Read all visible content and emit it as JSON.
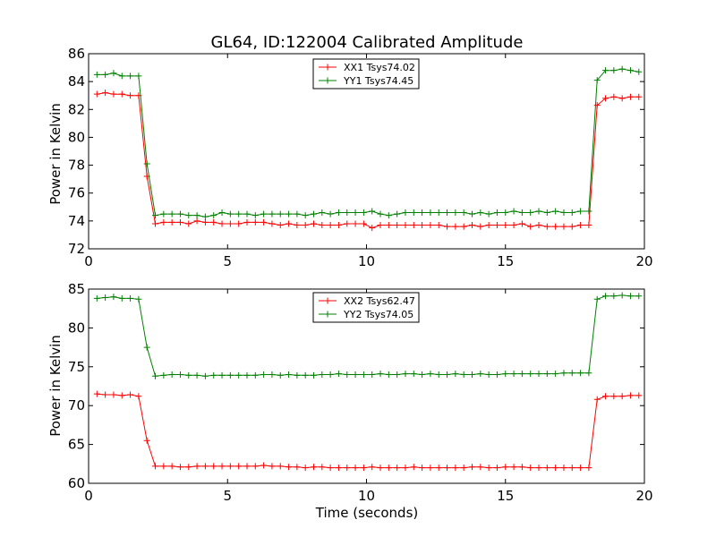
{
  "colors": {
    "xx": "#ff0000",
    "yy": "#008000",
    "axis": "#000000",
    "background": "#ffffff"
  },
  "chart_data": [
    {
      "type": "line",
      "title": "GL64, ID:122004 Calibrated Amplitude",
      "xlabel": "",
      "ylabel": "Power in Kelvin",
      "xlim": [
        0,
        20
      ],
      "ylim": [
        72,
        86
      ],
      "xticks": [
        "0",
        "5",
        "10",
        "15",
        "20"
      ],
      "yticks": [
        "72",
        "74",
        "76",
        "78",
        "80",
        "82",
        "84",
        "86"
      ],
      "xtick_values": [
        0,
        5,
        10,
        15,
        20
      ],
      "ytick_values": [
        72,
        74,
        76,
        78,
        80,
        82,
        84,
        86
      ],
      "grid": false,
      "legend_position": "top-center",
      "marker": "plus",
      "series": [
        {
          "name": "XX1 Tsys74.02",
          "color": "#ff0000",
          "x": [
            0.3,
            0.6,
            0.9,
            1.2,
            1.5,
            1.8,
            2.1,
            2.4,
            2.7,
            3.0,
            3.3,
            3.6,
            3.9,
            4.2,
            4.5,
            4.8,
            5.1,
            5.4,
            5.7,
            6.0,
            6.3,
            6.6,
            6.9,
            7.2,
            7.5,
            7.8,
            8.1,
            8.4,
            8.7,
            9.0,
            9.3,
            9.6,
            9.9,
            10.2,
            10.5,
            10.8,
            11.1,
            11.4,
            11.7,
            12.0,
            12.3,
            12.6,
            12.9,
            13.2,
            13.5,
            13.8,
            14.1,
            14.4,
            14.7,
            15.0,
            15.3,
            15.6,
            15.9,
            16.2,
            16.5,
            16.8,
            17.1,
            17.4,
            17.7,
            18.0,
            18.3,
            18.6,
            18.9,
            19.2,
            19.5,
            19.8
          ],
          "y": [
            83.1,
            83.2,
            83.1,
            83.1,
            83.0,
            83.0,
            77.2,
            73.8,
            73.9,
            73.9,
            73.9,
            73.8,
            74.0,
            73.9,
            73.9,
            73.8,
            73.8,
            73.8,
            73.9,
            73.9,
            73.9,
            73.8,
            73.7,
            73.8,
            73.7,
            73.7,
            73.8,
            73.7,
            73.7,
            73.7,
            73.8,
            73.8,
            73.8,
            73.5,
            73.7,
            73.7,
            73.7,
            73.7,
            73.7,
            73.7,
            73.7,
            73.7,
            73.6,
            73.6,
            73.6,
            73.7,
            73.6,
            73.7,
            73.7,
            73.7,
            73.7,
            73.8,
            73.6,
            73.7,
            73.6,
            73.6,
            73.6,
            73.6,
            73.7,
            73.7,
            82.3,
            82.8,
            82.9,
            82.8,
            82.9,
            82.9
          ]
        },
        {
          "name": "YY1 Tsys74.45",
          "color": "#008000",
          "x": [
            0.3,
            0.6,
            0.9,
            1.2,
            1.5,
            1.8,
            2.1,
            2.4,
            2.7,
            3.0,
            3.3,
            3.6,
            3.9,
            4.2,
            4.5,
            4.8,
            5.1,
            5.4,
            5.7,
            6.0,
            6.3,
            6.6,
            6.9,
            7.2,
            7.5,
            7.8,
            8.1,
            8.4,
            8.7,
            9.0,
            9.3,
            9.6,
            9.9,
            10.2,
            10.5,
            10.8,
            11.1,
            11.4,
            11.7,
            12.0,
            12.3,
            12.6,
            12.9,
            13.2,
            13.5,
            13.8,
            14.1,
            14.4,
            14.7,
            15.0,
            15.3,
            15.6,
            15.9,
            16.2,
            16.5,
            16.8,
            17.1,
            17.4,
            17.7,
            18.0,
            18.3,
            18.6,
            18.9,
            19.2,
            19.5,
            19.8
          ],
          "y": [
            84.5,
            84.5,
            84.6,
            84.4,
            84.4,
            84.4,
            78.1,
            74.4,
            74.5,
            74.5,
            74.5,
            74.4,
            74.4,
            74.3,
            74.4,
            74.6,
            74.5,
            74.5,
            74.5,
            74.4,
            74.5,
            74.5,
            74.5,
            74.5,
            74.5,
            74.4,
            74.5,
            74.6,
            74.5,
            74.6,
            74.6,
            74.6,
            74.6,
            74.7,
            74.5,
            74.4,
            74.5,
            74.6,
            74.6,
            74.6,
            74.6,
            74.6,
            74.6,
            74.6,
            74.6,
            74.5,
            74.6,
            74.5,
            74.6,
            74.6,
            74.7,
            74.6,
            74.6,
            74.7,
            74.6,
            74.7,
            74.6,
            74.6,
            74.7,
            74.7,
            84.1,
            84.8,
            84.8,
            84.9,
            84.8,
            84.7
          ]
        }
      ]
    },
    {
      "type": "line",
      "title": "",
      "xlabel": "Time (seconds)",
      "ylabel": "Power in Kelvin",
      "xlim": [
        0,
        20
      ],
      "ylim": [
        60,
        85
      ],
      "xticks": [
        "0",
        "5",
        "10",
        "15",
        "20"
      ],
      "yticks": [
        "60",
        "65",
        "70",
        "75",
        "80",
        "85"
      ],
      "xtick_values": [
        0,
        5,
        10,
        15,
        20
      ],
      "ytick_values": [
        60,
        65,
        70,
        75,
        80,
        85
      ],
      "grid": false,
      "legend_position": "top-center",
      "marker": "plus",
      "series": [
        {
          "name": "XX2 Tsys62.47",
          "color": "#ff0000",
          "x": [
            0.3,
            0.6,
            0.9,
            1.2,
            1.5,
            1.8,
            2.1,
            2.4,
            2.7,
            3.0,
            3.3,
            3.6,
            3.9,
            4.2,
            4.5,
            4.8,
            5.1,
            5.4,
            5.7,
            6.0,
            6.3,
            6.6,
            6.9,
            7.2,
            7.5,
            7.8,
            8.1,
            8.4,
            8.7,
            9.0,
            9.3,
            9.6,
            9.9,
            10.2,
            10.5,
            10.8,
            11.1,
            11.4,
            11.7,
            12.0,
            12.3,
            12.6,
            12.9,
            13.2,
            13.5,
            13.8,
            14.1,
            14.4,
            14.7,
            15.0,
            15.3,
            15.6,
            15.9,
            16.2,
            16.5,
            16.8,
            17.1,
            17.4,
            17.7,
            18.0,
            18.3,
            18.6,
            18.9,
            19.2,
            19.5,
            19.8
          ],
          "y": [
            71.5,
            71.4,
            71.4,
            71.3,
            71.4,
            71.2,
            65.5,
            62.2,
            62.2,
            62.2,
            62.1,
            62.1,
            62.2,
            62.2,
            62.2,
            62.2,
            62.2,
            62.2,
            62.2,
            62.2,
            62.3,
            62.2,
            62.2,
            62.1,
            62.1,
            62.0,
            62.1,
            62.1,
            62.0,
            62.0,
            62.0,
            62.0,
            62.0,
            62.1,
            62.0,
            62.0,
            62.0,
            62.0,
            62.1,
            62.0,
            62.0,
            62.0,
            62.0,
            62.0,
            62.0,
            62.1,
            62.1,
            62.0,
            62.0,
            62.1,
            62.1,
            62.1,
            62.0,
            62.0,
            62.0,
            62.0,
            62.0,
            62.0,
            62.0,
            62.0,
            70.8,
            71.2,
            71.2,
            71.2,
            71.3,
            71.3
          ]
        },
        {
          "name": "YY2 Tsys74.05",
          "color": "#008000",
          "x": [
            0.3,
            0.6,
            0.9,
            1.2,
            1.5,
            1.8,
            2.1,
            2.4,
            2.7,
            3.0,
            3.3,
            3.6,
            3.9,
            4.2,
            4.5,
            4.8,
            5.1,
            5.4,
            5.7,
            6.0,
            6.3,
            6.6,
            6.9,
            7.2,
            7.5,
            7.8,
            8.1,
            8.4,
            8.7,
            9.0,
            9.3,
            9.6,
            9.9,
            10.2,
            10.5,
            10.8,
            11.1,
            11.4,
            11.7,
            12.0,
            12.3,
            12.6,
            12.9,
            13.2,
            13.5,
            13.8,
            14.1,
            14.4,
            14.7,
            15.0,
            15.3,
            15.6,
            15.9,
            16.2,
            16.5,
            16.8,
            17.1,
            17.4,
            17.7,
            18.0,
            18.3,
            18.6,
            18.9,
            19.2,
            19.5,
            19.8
          ],
          "y": [
            83.8,
            83.9,
            84.0,
            83.8,
            83.8,
            83.7,
            77.5,
            73.8,
            73.9,
            74.0,
            74.0,
            73.9,
            73.9,
            73.8,
            73.9,
            73.9,
            73.9,
            73.9,
            73.9,
            73.9,
            74.0,
            74.0,
            73.9,
            74.0,
            73.9,
            73.9,
            73.9,
            74.0,
            74.0,
            74.1,
            74.0,
            74.0,
            74.0,
            74.0,
            74.1,
            74.0,
            74.0,
            74.1,
            74.1,
            74.0,
            74.1,
            74.0,
            74.0,
            74.1,
            74.0,
            74.0,
            74.1,
            74.0,
            74.0,
            74.1,
            74.1,
            74.1,
            74.1,
            74.1,
            74.1,
            74.1,
            74.2,
            74.2,
            74.2,
            74.2,
            83.7,
            84.1,
            84.1,
            84.2,
            84.1,
            84.1
          ]
        }
      ]
    }
  ]
}
